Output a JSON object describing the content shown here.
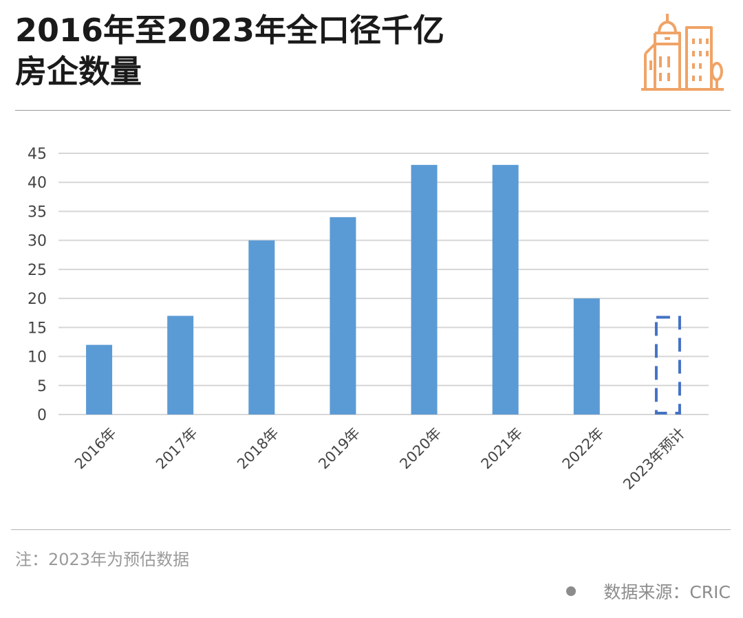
{
  "header": {
    "title_line1": "2016年至2023年全口径千亿",
    "title_line2": "房企数量",
    "logo_icon": "city-buildings-icon",
    "logo_color": "#F0A366"
  },
  "chart_data": {
    "type": "bar",
    "categories": [
      "2016年",
      "2017年",
      "2018年",
      "2019年",
      "2020年",
      "2021年",
      "2022年",
      "2023年预计"
    ],
    "values": [
      12,
      17,
      30,
      34,
      43,
      43,
      20,
      17
    ],
    "estimated": [
      false,
      false,
      false,
      false,
      false,
      false,
      false,
      true
    ],
    "ylim": [
      0,
      45
    ],
    "yticks": [
      0,
      5,
      10,
      15,
      20,
      25,
      30,
      35,
      40,
      45
    ],
    "grid": true,
    "bar_color": "#5B9BD5",
    "estimate_border_color": "#4472C4"
  },
  "footer": {
    "note": "注：2023年为预估数据",
    "source": "数据来源：CRIC"
  }
}
